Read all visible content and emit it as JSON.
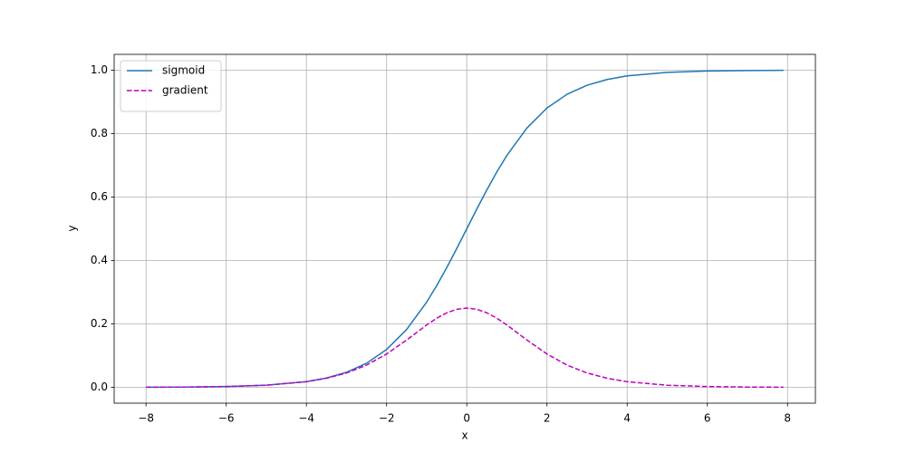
{
  "chart_data": {
    "type": "line",
    "x": [
      -8,
      -7,
      -6,
      -5,
      -4,
      -3.5,
      -3,
      -2.5,
      -2,
      -1.5,
      -1,
      -0.75,
      -0.5,
      -0.25,
      0,
      0.25,
      0.5,
      0.75,
      1,
      1.5,
      2,
      2.5,
      3,
      3.5,
      4,
      5,
      6,
      7,
      7.9
    ],
    "series": [
      {
        "name": "sigmoid",
        "color": "#1f77b4",
        "dash": false,
        "values": [
          0.0003,
          0.0009,
          0.0025,
          0.0067,
          0.018,
          0.0293,
          0.0474,
          0.0759,
          0.1192,
          0.1824,
          0.2689,
          0.3208,
          0.3775,
          0.4378,
          0.5,
          0.5622,
          0.6225,
          0.6792,
          0.7311,
          0.8176,
          0.8808,
          0.9241,
          0.9526,
          0.9707,
          0.982,
          0.9933,
          0.9975,
          0.9991,
          0.9996
        ]
      },
      {
        "name": "gradient",
        "color": "#bf00bf",
        "dash": true,
        "values": [
          0.0003,
          0.0009,
          0.0025,
          0.0066,
          0.0177,
          0.0285,
          0.0452,
          0.0701,
          0.105,
          0.1491,
          0.1966,
          0.2179,
          0.235,
          0.2461,
          0.25,
          0.2461,
          0.235,
          0.2179,
          0.1966,
          0.1491,
          0.105,
          0.0701,
          0.0452,
          0.0285,
          0.0177,
          0.0066,
          0.0025,
          0.0009,
          0.0004
        ]
      }
    ],
    "xlabel": "x",
    "ylabel": "y",
    "xlim": [
      -8.795,
      8.695
    ],
    "ylim": [
      -0.05,
      1.05
    ],
    "xticks": [
      {
        "value": -8,
        "label": "−8"
      },
      {
        "value": -6,
        "label": "−6"
      },
      {
        "value": -4,
        "label": "−4"
      },
      {
        "value": -2,
        "label": "−2"
      },
      0,
      2,
      4,
      6,
      8
    ],
    "yticks": [
      {
        "value": 0,
        "label": "0.0"
      },
      {
        "value": 0.2,
        "label": "0.2"
      },
      {
        "value": 0.4,
        "label": "0.4"
      },
      {
        "value": 0.6,
        "label": "0.6"
      },
      {
        "value": 0.8,
        "label": "0.8"
      },
      {
        "value": 1,
        "label": "1.0"
      }
    ],
    "grid": true,
    "legend": "upper-left"
  }
}
